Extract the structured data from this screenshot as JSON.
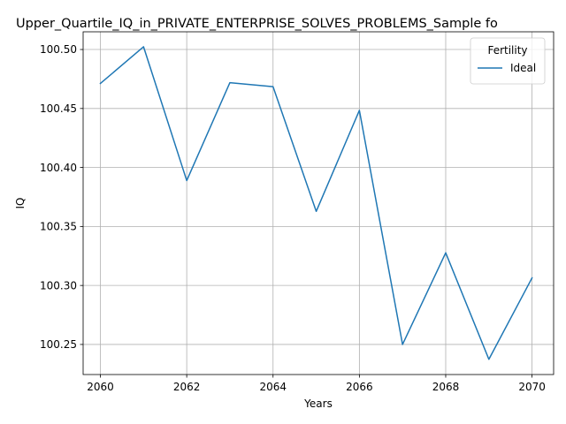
{
  "chart_data": {
    "type": "line",
    "title": "Upper_Quartile_IQ_in_PRIVATE_ENTERPRISE_SOLVES_PROBLEMS_Sample fo",
    "xlabel": "Years",
    "ylabel": "IQ",
    "xlim": [
      2059.6,
      2070.5
    ],
    "ylim": [
      100.2245,
      100.515
    ],
    "x_ticks": [
      2060,
      2062,
      2064,
      2066,
      2068,
      2070
    ],
    "y_ticks": [
      100.25,
      100.3,
      100.35,
      100.4,
      100.45,
      100.5
    ],
    "y_tick_labels": [
      "100.25",
      "100.30",
      "100.35",
      "100.40",
      "100.45",
      "100.50"
    ],
    "grid": true,
    "legend": {
      "title": "Fertility",
      "placement": "top-right"
    },
    "series": [
      {
        "name": "Ideal",
        "color": "#1f77b4",
        "x": [
          2060,
          2061,
          2062,
          2063,
          2064,
          2065,
          2066,
          2067,
          2068,
          2069,
          2070
        ],
        "y": [
          100.4712,
          100.5023,
          100.3889,
          100.4719,
          100.4685,
          100.3628,
          100.4484,
          100.25,
          100.3277,
          100.2374,
          100.3064
        ]
      }
    ]
  }
}
